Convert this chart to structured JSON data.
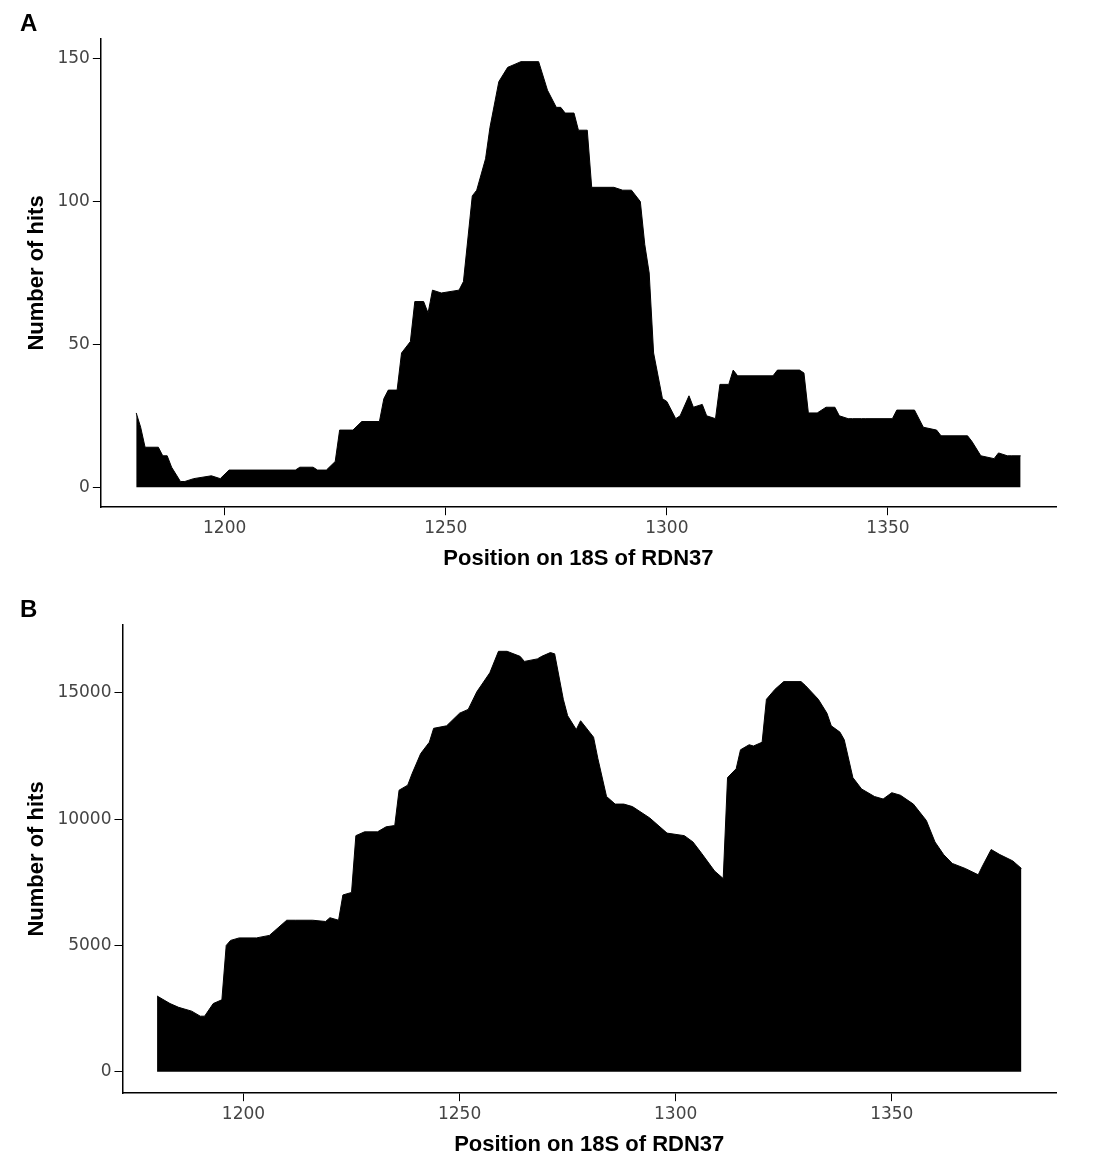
{
  "chart_data": [
    {
      "type": "area",
      "title": "A",
      "xlabel": "Position on 18S of RDN37",
      "ylabel": "Number of hits",
      "xlim": [
        1172,
        1388
      ],
      "xticks": [
        1200,
        1250,
        1300,
        1350
      ],
      "ylim": [
        -7,
        157
      ],
      "yticks": [
        0,
        50,
        100,
        150
      ],
      "grid": false,
      "legend": false,
      "series": [
        {
          "color": "#000000",
          "x": [
            1180,
            1181,
            1182,
            1185,
            1186,
            1187,
            1188,
            1190,
            1191,
            1193,
            1197,
            1199,
            1201,
            1216,
            1217,
            1220,
            1221,
            1223,
            1225,
            1226,
            1229,
            1231,
            1235,
            1236,
            1237,
            1239,
            1240,
            1242,
            1243,
            1245,
            1246,
            1247,
            1249,
            1253,
            1254,
            1256,
            1257,
            1259,
            1260,
            1262,
            1264,
            1267,
            1271,
            1273,
            1275,
            1276,
            1277,
            1279,
            1280,
            1282,
            1283,
            1288,
            1290,
            1292,
            1294,
            1295,
            1296,
            1297,
            1299,
            1300,
            1302,
            1303,
            1305,
            1306,
            1308,
            1309,
            1311,
            1312,
            1314,
            1315,
            1316,
            1324,
            1325,
            1330,
            1331,
            1332,
            1334,
            1336,
            1338,
            1339,
            1341,
            1342,
            1344,
            1345,
            1351,
            1352,
            1356,
            1358,
            1361,
            1362,
            1368,
            1369,
            1371,
            1374,
            1375,
            1377,
            1378,
            1380
          ],
          "values": [
            26,
            21,
            14,
            14,
            11,
            11,
            7,
            2,
            2,
            3,
            4,
            3,
            6,
            6,
            7,
            7,
            6,
            6,
            9,
            20,
            20,
            23,
            23,
            31,
            34,
            34,
            47,
            51,
            65,
            65,
            61,
            69,
            68,
            69,
            72,
            102,
            104,
            115,
            126,
            142,
            147,
            149,
            149,
            139,
            133,
            133,
            131,
            131,
            125,
            125,
            105,
            105,
            104,
            104,
            100,
            85,
            75,
            47,
            31,
            30,
            24,
            25,
            32,
            28,
            29,
            25,
            24,
            36,
            36,
            41,
            39,
            39,
            41,
            41,
            40,
            26,
            26,
            28,
            28,
            25,
            24,
            24,
            24,
            24,
            24,
            27,
            27,
            21,
            20,
            18,
            18,
            16,
            11,
            10,
            12,
            11,
            11,
            11
          ]
        }
      ]
    },
    {
      "type": "area",
      "title": "B",
      "xlabel": "Position on 18S of RDN37",
      "ylabel": "Number of hits",
      "xlim": [
        1172,
        1388
      ],
      "xticks": [
        1200,
        1250,
        1300,
        1350
      ],
      "ylim": [
        -850,
        17700
      ],
      "yticks": [
        0,
        5000,
        10000,
        15000
      ],
      "grid": false,
      "legend": false,
      "series": [
        {
          "color": "#000000",
          "x": [
            1180,
            1183,
            1185,
            1188,
            1190,
            1191,
            1193,
            1195,
            1196,
            1197,
            1199,
            1203,
            1206,
            1208,
            1210,
            1212,
            1216,
            1219,
            1220,
            1222,
            1223,
            1225,
            1226,
            1228,
            1231,
            1233,
            1235,
            1236,
            1238,
            1239,
            1241,
            1243,
            1244,
            1247,
            1250,
            1252,
            1254,
            1257,
            1259,
            1261,
            1264,
            1265,
            1268,
            1269,
            1271,
            1272,
            1274,
            1275,
            1277,
            1278,
            1281,
            1282,
            1284,
            1286,
            1288,
            1290,
            1294,
            1298,
            1302,
            1304,
            1306,
            1309,
            1311,
            1312,
            1314,
            1315,
            1317,
            1318,
            1320,
            1321,
            1323,
            1325,
            1329,
            1330,
            1333,
            1335,
            1336,
            1338,
            1339,
            1341,
            1343,
            1346,
            1348,
            1350,
            1352,
            1355,
            1358,
            1360,
            1362,
            1364,
            1367,
            1370,
            1371,
            1373,
            1375,
            1378,
            1380
          ],
          "values": [
            3000,
            2700,
            2550,
            2400,
            2200,
            2200,
            2700,
            2850,
            5000,
            5200,
            5300,
            5300,
            5400,
            5700,
            6000,
            6000,
            6000,
            5950,
            6100,
            6000,
            7000,
            7100,
            9350,
            9500,
            9500,
            9700,
            9750,
            11150,
            11350,
            11800,
            12600,
            13050,
            13600,
            13700,
            14200,
            14350,
            15050,
            15800,
            16650,
            16650,
            16450,
            16250,
            16350,
            16450,
            16600,
            16550,
            14750,
            14100,
            13550,
            13900,
            13250,
            12400,
            10900,
            10600,
            10600,
            10500,
            10050,
            9450,
            9350,
            9100,
            8650,
            7950,
            7650,
            11650,
            12000,
            12750,
            12950,
            12900,
            13050,
            14750,
            15150,
            15450,
            15450,
            15300,
            14750,
            14200,
            13700,
            13450,
            13150,
            11650,
            11200,
            10900,
            10800,
            11050,
            10950,
            10600,
            9950,
            9100,
            8600,
            8250,
            8050,
            7800,
            8150,
            8800,
            8600,
            8350,
            8050
          ]
        }
      ]
    }
  ]
}
